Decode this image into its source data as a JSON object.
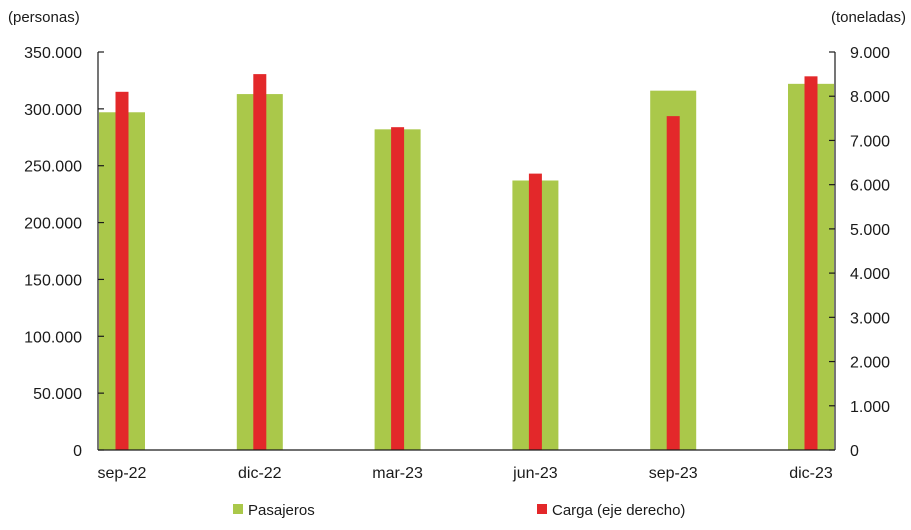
{
  "chart_data": {
    "type": "bar",
    "categories": [
      "sep-22",
      "dic-22",
      "mar-23",
      "jun-23",
      "sep-23",
      "dic-23"
    ],
    "left_axis": {
      "unit_label": "(personas)",
      "ylim": [
        0,
        350000
      ],
      "ticks": [
        0,
        50000,
        100000,
        150000,
        200000,
        250000,
        300000,
        350000
      ],
      "tick_labels": [
        "0",
        "50.000",
        "100.000",
        "150.000",
        "200.000",
        "250.000",
        "300.000",
        "350.000"
      ]
    },
    "right_axis": {
      "unit_label": "(toneladas)",
      "ylim": [
        0,
        9000
      ],
      "ticks": [
        0,
        1000,
        2000,
        3000,
        4000,
        5000,
        6000,
        7000,
        8000,
        9000
      ],
      "tick_labels": [
        "0",
        "1.000",
        "2.000",
        "3.000",
        "4.000",
        "5.000",
        "6.000",
        "7.000",
        "8.000",
        "9.000"
      ]
    },
    "series": [
      {
        "name": "Pasajeros",
        "axis": "left",
        "color": "#aac84a",
        "values": [
          297000,
          313000,
          282000,
          237000,
          316000,
          322000
        ]
      },
      {
        "name": "Carga (eje derecho)",
        "axis": "right",
        "color": "#e3282a",
        "values": [
          8100,
          8500,
          7300,
          6250,
          7550,
          8450
        ]
      }
    ],
    "legend_position": "bottom",
    "grid": false
  }
}
